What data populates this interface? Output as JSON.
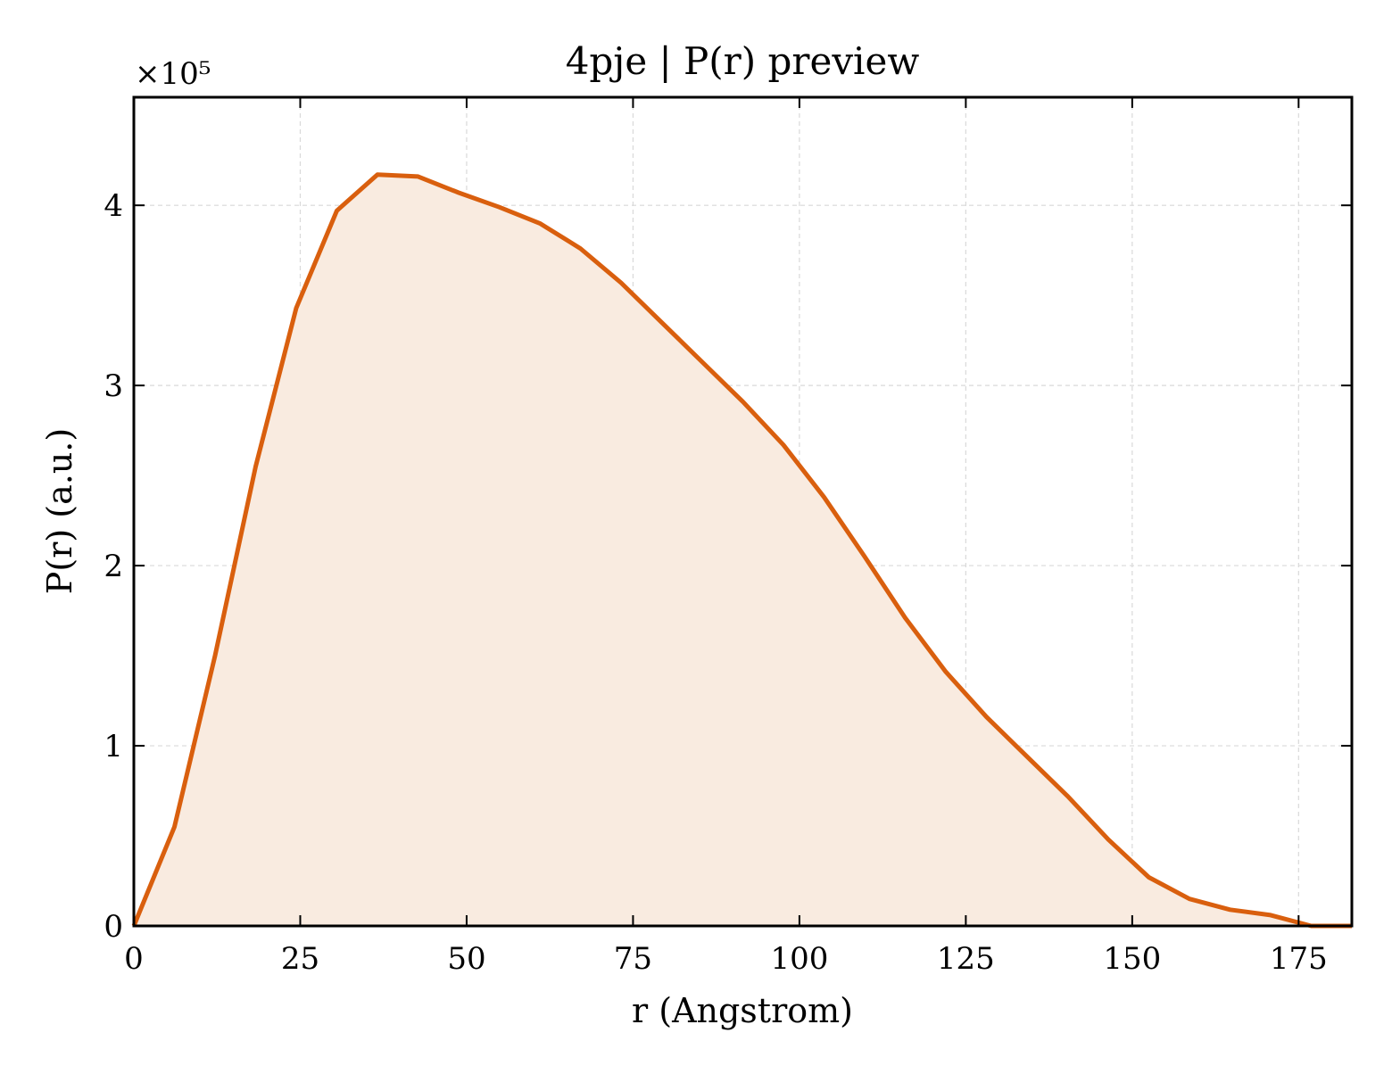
{
  "chart_data": {
    "type": "area",
    "title": "4pje | P(r) preview",
    "xlabel": "r (Angstrom)",
    "ylabel": "P(r) (a.u.)",
    "y_scale_multiplier": "×10⁵",
    "xlim": [
      0,
      183
    ],
    "ylim": [
      0,
      4.6
    ],
    "x_ticks": [
      0,
      25,
      50,
      75,
      100,
      125,
      150,
      175
    ],
    "y_ticks": [
      0,
      1,
      2,
      3,
      4
    ],
    "grid": true,
    "legend": "none",
    "colors": {
      "line": "#d95f0e",
      "fill": "#f9ebe0",
      "grid": "#d9d9d9",
      "frame": "#000000"
    },
    "series": [
      {
        "x": [
          0,
          6.1,
          12.2,
          18.3,
          24.4,
          30.5,
          36.6,
          42.7,
          48.8,
          54.9,
          61.0,
          67.1,
          73.2,
          79.3,
          85.4,
          91.5,
          97.6,
          103.7,
          109.8,
          115.9,
          122.0,
          128.1,
          134.2,
          140.3,
          146.4,
          152.5,
          158.6,
          164.7,
          170.8,
          176.9,
          183.0
        ],
        "values": [
          0.0,
          0.55,
          1.5,
          2.55,
          3.43,
          3.97,
          4.17,
          4.16,
          4.07,
          3.99,
          3.9,
          3.76,
          3.57,
          3.35,
          3.13,
          2.91,
          2.67,
          2.38,
          2.05,
          1.71,
          1.41,
          1.16,
          0.94,
          0.72,
          0.48,
          0.27,
          0.15,
          0.09,
          0.06,
          0.0,
          0.0
        ]
      }
    ]
  }
}
